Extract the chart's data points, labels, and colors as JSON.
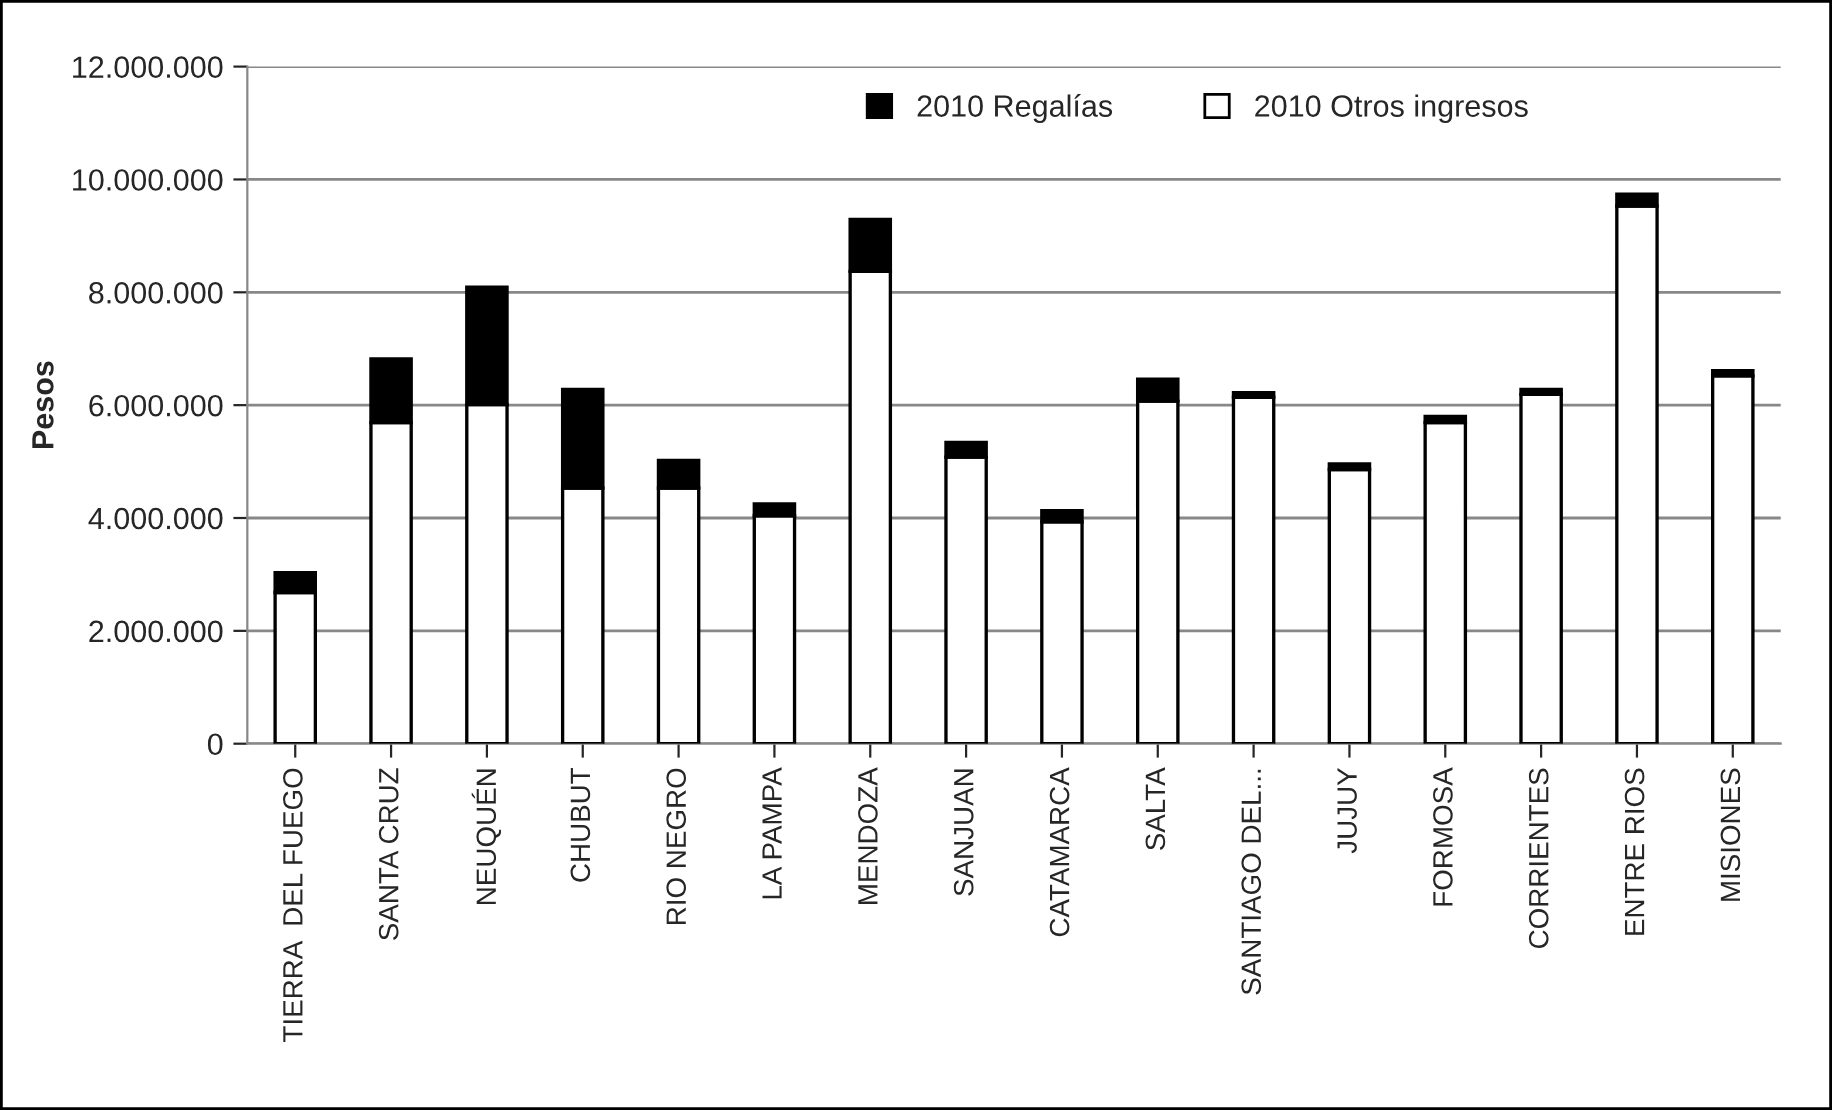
{
  "chart_data": {
    "type": "bar",
    "stacked": true,
    "ylabel": "Pesos",
    "categories": [
      "TIERRA  DEL FUEGO",
      "SANTA CRUZ",
      "NEUQUÉN",
      "CHUBUT",
      "RIO NEGRO",
      "LA PAMPA",
      "MENDOZA",
      "SANJUAN",
      "CATAMARCA",
      "SALTA",
      "SANTIAGO DEL...",
      "JUJUY",
      "FORMOSA",
      "CORRIENTES",
      "ENTRE RIOS",
      "MISIONES"
    ],
    "series": [
      {
        "name": "2010 Otros ingresos",
        "color": "#ffffff",
        "values": [
          2680000,
          5690000,
          6010000,
          4530000,
          4530000,
          4040000,
          8370000,
          5080000,
          3930000,
          6070000,
          6140000,
          4860000,
          5690000,
          6190000,
          9530000,
          6520000
        ]
      },
      {
        "name": "2010 Regalías",
        "color": "#000000",
        "values": [
          350000,
          1130000,
          2080000,
          1750000,
          490000,
          210000,
          920000,
          260000,
          200000,
          390000,
          80000,
          100000,
          110000,
          90000,
          210000,
          90000
        ]
      }
    ],
    "ylim": [
      0,
      12000000
    ],
    "yticks": [
      {
        "value": 0,
        "label": "0"
      },
      {
        "value": 2000000,
        "label": "2.000.000"
      },
      {
        "value": 4000000,
        "label": "4.000.000"
      },
      {
        "value": 6000000,
        "label": "6.000.000"
      },
      {
        "value": 8000000,
        "label": "8.000.000"
      },
      {
        "value": 10000000,
        "label": "10.000.000"
      },
      {
        "value": 12000000,
        "label": "12.000.000"
      }
    ],
    "grid": "y",
    "legend": "top"
  }
}
